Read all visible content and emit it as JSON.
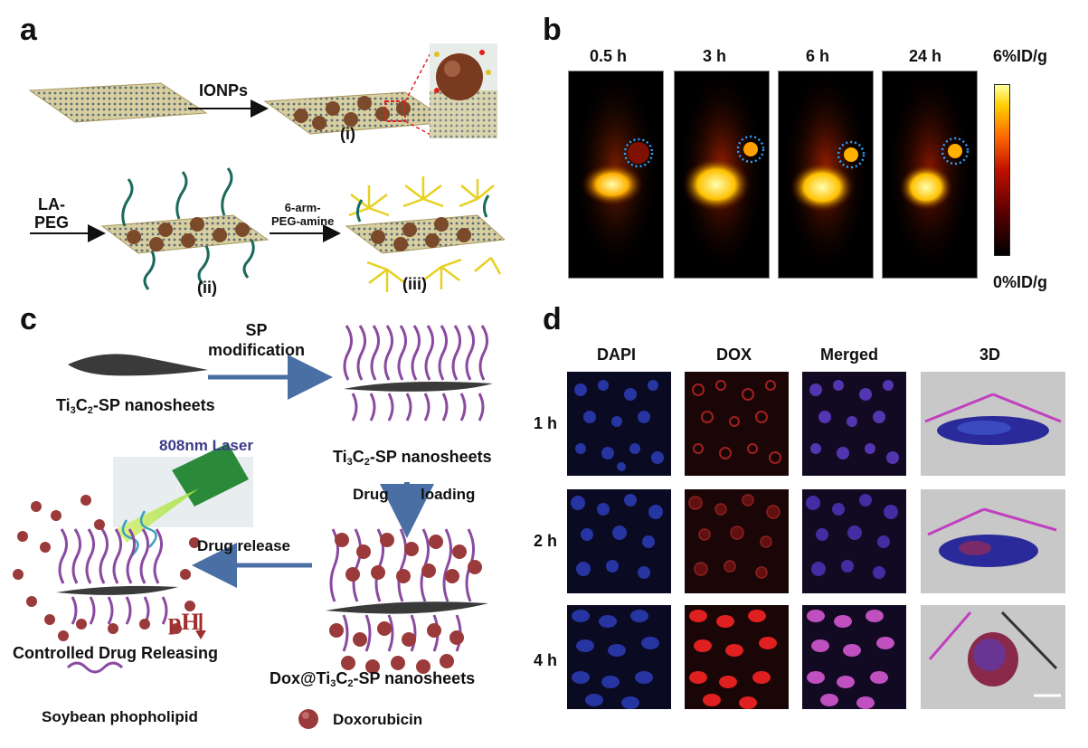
{
  "panels": {
    "a": {
      "letter": "a",
      "labels": {
        "ionps": "IONPs",
        "i": "(i)",
        "la_peg_1": "LA-",
        "la_peg_2": "PEG",
        "six_arm_1": "6-arm-",
        "six_arm_2": "PEG-amine",
        "ii": "(ii)",
        "iii": "(iii)"
      }
    },
    "b": {
      "letter": "b",
      "timepoints": [
        "0.5 h",
        "3 h",
        "6 h",
        "24 h"
      ],
      "scale_max": "6%ID/g",
      "scale_min": "0%ID/g",
      "colorscale": [
        "#000000",
        "#5a0000",
        "#c01000",
        "#ff6a00",
        "#ffd000",
        "#ffffa0"
      ]
    },
    "c": {
      "letter": "c",
      "sp_modification_1": "SP",
      "sp_modification_2": "modification",
      "ti3c2_sp_left_pre": "Ti",
      "ti3c2_sp_left_sub1": "3",
      "ti3c2_sp_left_mid": "C",
      "ti3c2_sp_left_sub2": "2",
      "ti3c2_sp_left_post": "-SP nanosheets",
      "ti3c2_sp_right_pre": "Ti",
      "ti3c2_sp_right_sub1": "3",
      "ti3c2_sp_right_mid": "C",
      "ti3c2_sp_right_sub2": "2",
      "ti3c2_sp_right_post": "-SP nanosheets",
      "laser": "808nm Laser",
      "drug_loading_1": "Drug",
      "drug_loading_2": "loading",
      "drug_release": "Drug release",
      "ph": "pH",
      "controlled": "Controlled Drug Releasing",
      "dox_pre": "Dox@Ti",
      "dox_sub1": "3",
      "dox_mid": "C",
      "dox_sub2": "2",
      "dox_post": "-SP nanosheets",
      "legend_soybean": "Soybean phopholipid",
      "legend_dox": "Doxorubicin",
      "colors": {
        "arrow": "#4a6fa5",
        "lipid": "#8a4aa0",
        "sphere": "#9a3a3a",
        "sheet": "#333333",
        "laser_label": "#3b3b8a"
      }
    },
    "d": {
      "letter": "d",
      "columns": [
        "DAPI",
        "DOX",
        "Merged",
        "3D"
      ],
      "rows": [
        "1 h",
        "2 h",
        "4 h"
      ]
    }
  }
}
